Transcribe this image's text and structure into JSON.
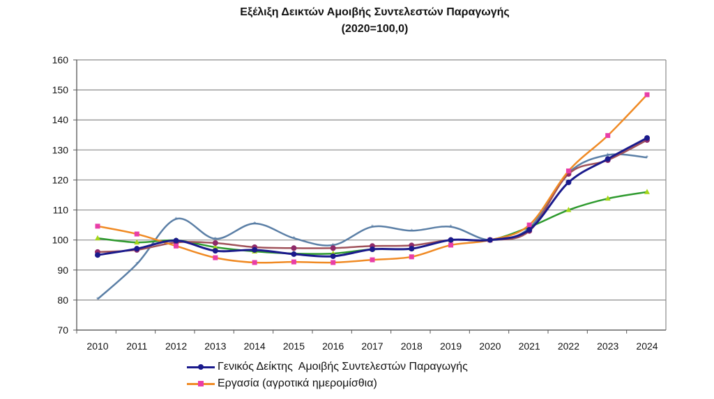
{
  "chart_data": {
    "type": "line",
    "title": "Εξέλιξη Δεικτών Αμοιβής Συντελεστών Παραγωγής",
    "subtitle": "(2020=100,0)",
    "xlabel": "",
    "ylabel": "",
    "x": [
      "2010",
      "2011",
      "2012",
      "2013",
      "2014",
      "2015",
      "2016",
      "2017",
      "2018",
      "2019",
      "2020",
      "2021",
      "2022",
      "2023",
      "2024"
    ],
    "ylim": [
      70,
      160
    ],
    "yticks": [
      "70",
      "80",
      "90",
      "100",
      "110",
      "120",
      "130",
      "140",
      "150",
      "160"
    ],
    "grid": true,
    "legend_position": "bottom",
    "series": [
      {
        "name": "Γενικός Δείκτης  Αμοιβής Συντελεστών Παραγωγής",
        "color": "#1a1a8c",
        "marker": "circle",
        "marker_color": "#1a1a8c",
        "values": [
          95.0,
          97.1,
          99.8,
          96.4,
          96.7,
          95.3,
          94.6,
          96.9,
          97.1,
          100.0,
          100.0,
          103.4,
          119.2,
          127.0,
          134.0
        ]
      },
      {
        "name": "Εργασία (αγροτικά ημερομίσθια)",
        "color": "#f08a24",
        "marker": "square",
        "marker_color": "#e83ea8",
        "values": [
          104.6,
          102.0,
          98.0,
          94.1,
          92.5,
          92.7,
          92.5,
          93.4,
          94.4,
          98.3,
          100.0,
          105.0,
          123.0,
          134.8,
          148.4
        ]
      },
      {
        "name": "",
        "color": "#2e9a2e",
        "marker": "triangle",
        "marker_color": "#a6d61a",
        "values": [
          100.6,
          99.2,
          99.9,
          97.6,
          96.2,
          95.5,
          95.5,
          96.9,
          97.1,
          100.0,
          100.0,
          104.3,
          110.0,
          113.8,
          116.0
        ]
      },
      {
        "name": "",
        "color": "#a0525a",
        "marker": "circle",
        "marker_color": "#8e2a6a",
        "values": [
          96.0,
          96.7,
          99.2,
          99.0,
          97.6,
          97.3,
          97.3,
          98.0,
          98.2,
          100.0,
          100.0,
          103.0,
          122.0,
          126.6,
          133.3
        ]
      },
      {
        "name": "",
        "color": "#5b7fa6",
        "marker": "star",
        "marker_color": "#5b7fa6",
        "values": [
          80.3,
          92.0,
          107.0,
          100.4,
          105.5,
          100.6,
          98.3,
          104.4,
          103.1,
          104.4,
          100.0,
          104.0,
          122.4,
          128.3,
          127.5
        ]
      }
    ]
  }
}
